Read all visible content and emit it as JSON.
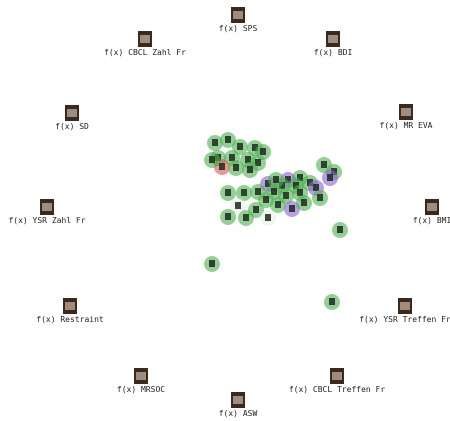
{
  "anchors": [
    {
      "label": "f(x) SPS"
    },
    {
      "label": "f(x) CBCL Zahl Fr"
    },
    {
      "label": "f(x) BDI"
    },
    {
      "label": "f(x) SD"
    },
    {
      "label": "f(x) MR EVA"
    },
    {
      "label": "f(x) YSR Zahl Fr"
    },
    {
      "label": "f(x) BMI"
    },
    {
      "label": "f(x) Restraint"
    },
    {
      "label": "f(x) YSR Treffen Fr"
    },
    {
      "label": "f(x) MRSOC"
    },
    {
      "label": "f(x) CBCL Treffen Fr"
    },
    {
      "label": "f(x) ASW"
    }
  ]
}
